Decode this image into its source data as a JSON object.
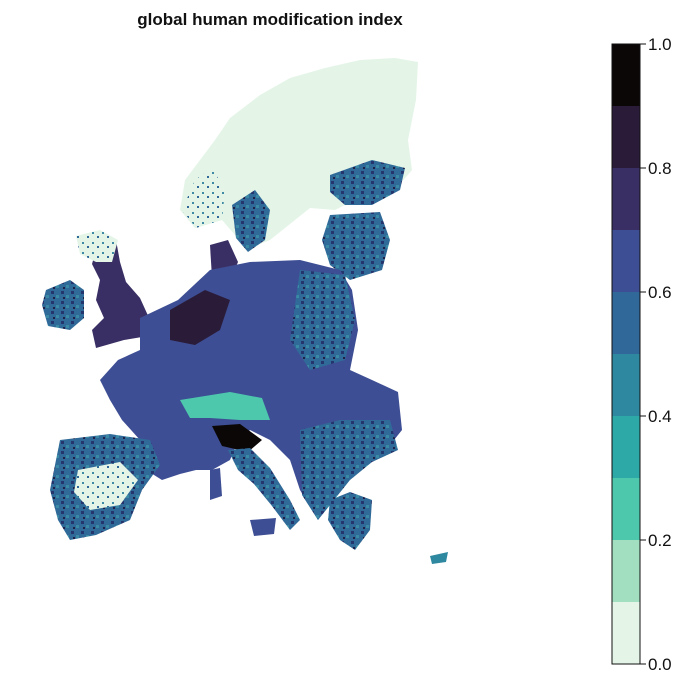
{
  "title": "global human modification index",
  "legend": {
    "bins": [
      {
        "from": 0.0,
        "to": 0.1,
        "color": "#e4f5e8"
      },
      {
        "from": 0.1,
        "to": 0.2,
        "color": "#a2dfc1"
      },
      {
        "from": 0.2,
        "to": 0.3,
        "color": "#4ec8ad"
      },
      {
        "from": 0.3,
        "to": 0.4,
        "color": "#2da9a7"
      },
      {
        "from": 0.4,
        "to": 0.5,
        "color": "#2e88a0"
      },
      {
        "from": 0.5,
        "to": 0.6,
        "color": "#31689a"
      },
      {
        "from": 0.6,
        "to": 0.7,
        "color": "#3e4e94"
      },
      {
        "from": 0.7,
        "to": 0.8,
        "color": "#3a2f64"
      },
      {
        "from": 0.8,
        "to": 0.9,
        "color": "#2a1c38"
      },
      {
        "from": 0.9,
        "to": 1.0,
        "color": "#0b0707"
      }
    ],
    "ticks": [
      "0.0",
      "0.2",
      "0.4",
      "0.6",
      "0.8",
      "1.0"
    ]
  }
}
